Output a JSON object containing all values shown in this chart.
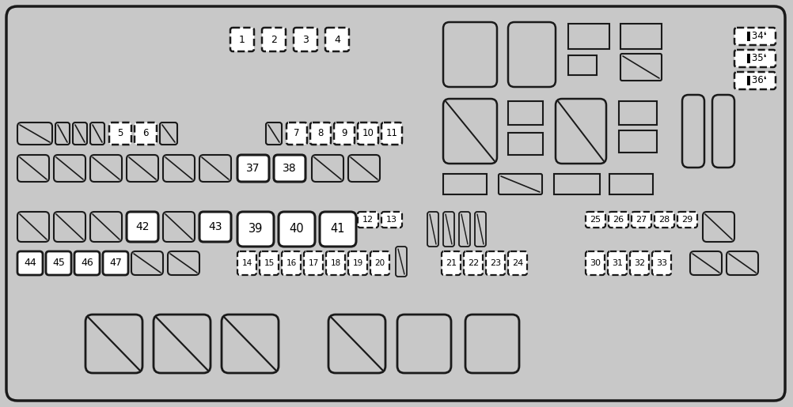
{
  "bg": "#c8c8c8",
  "ec": "#1a1a1a",
  "wf": "#ffffff",
  "gf": "#c8c8c8",
  "figsize": [
    10.03,
    5.15
  ],
  "dpi": 100
}
